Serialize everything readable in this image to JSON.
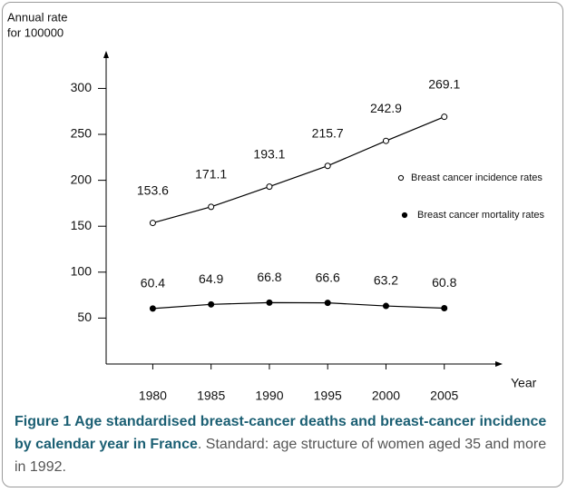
{
  "chart_data": {
    "type": "line",
    "y_label": [
      "Annual rate",
      "for 100000"
    ],
    "x_label": "Year",
    "x": [
      1980,
      1985,
      1990,
      1995,
      2000,
      2005
    ],
    "xlim": [
      1976,
      2010
    ],
    "xticks": [
      1980,
      1985,
      1990,
      1995,
      2000,
      2005
    ],
    "ylim": [
      0,
      335
    ],
    "yticks": [
      50,
      100,
      150,
      200,
      250,
      300
    ],
    "series": [
      {
        "name": "Breast cancer incidence rates",
        "color": "#000000",
        "marker": "open",
        "values": [
          153.6,
          171.1,
          193.1,
          215.7,
          242.9,
          269.1
        ]
      },
      {
        "name": "Breast cancer mortality rates",
        "color": "#000000",
        "marker": "filled",
        "values": [
          60.4,
          64.9,
          66.8,
          66.6,
          63.2,
          60.8
        ]
      }
    ]
  },
  "caption": {
    "title": "Figure 1 Age standardised breast-cancer deaths and breast-cancer incidence by calendar year in France",
    "text": ". Standard: age structure of women aged 35 and more in 1992."
  }
}
